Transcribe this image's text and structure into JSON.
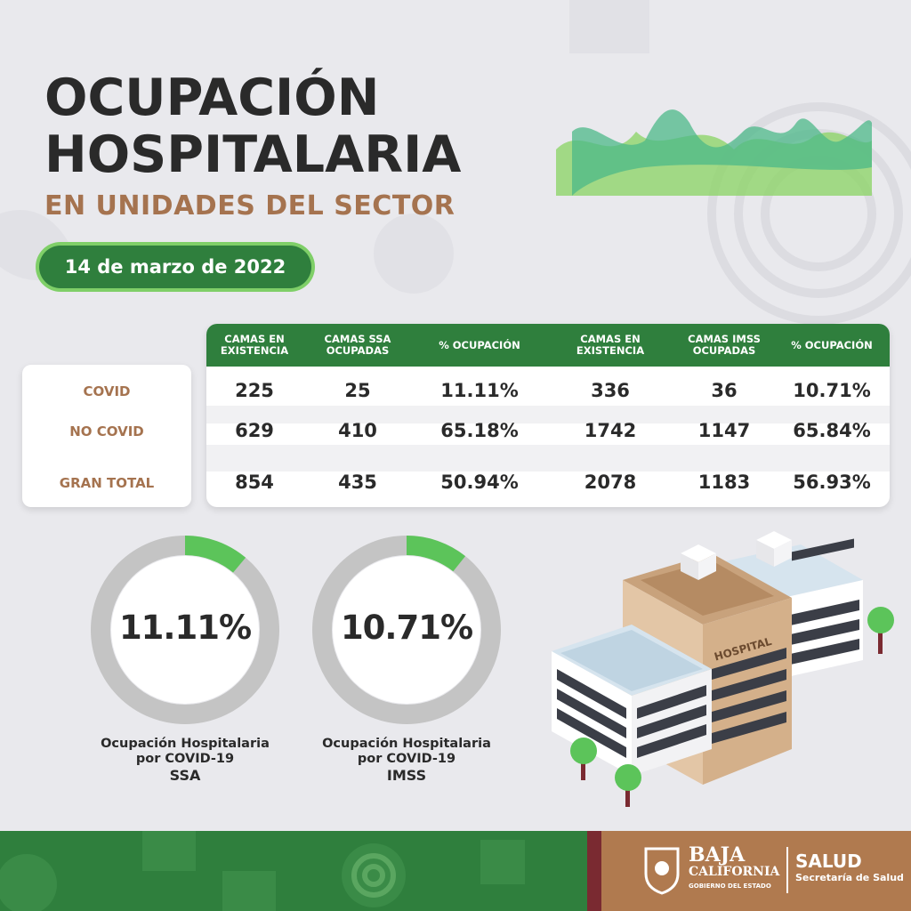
{
  "header": {
    "title_line1": "OCUPACIÓN",
    "title_line2": "HOSPITALARIA",
    "subtitle": "EN UNIDADES DEL SECTOR",
    "date": "14 de marzo de 2022"
  },
  "table": {
    "columns": [
      "CAMAS EN EXISTENCIA",
      "CAMAS SSA OCUPADAS",
      "% OCUPACIÓN",
      "CAMAS EN EXISTENCIA",
      "CAMAS IMSS OCUPADAS",
      "% OCUPACIÓN"
    ],
    "rows": [
      {
        "label": "COVID",
        "values": [
          "225",
          "25",
          "11.11%",
          "336",
          "36",
          "10.71%"
        ]
      },
      {
        "label": "NO COVID",
        "values": [
          "629",
          "410",
          "65.18%",
          "1742",
          "1147",
          "65.84%"
        ]
      },
      {
        "label": "GRAN TOTAL",
        "values": [
          "854",
          "435",
          "50.94%",
          "2078",
          "1183",
          "56.93%"
        ]
      }
    ]
  },
  "donuts": [
    {
      "value": "11.11%",
      "fraction": 0.1111,
      "caption1": "Ocupación Hospitalaria",
      "caption2": "por COVID-19",
      "caption3": "SSA"
    },
    {
      "value": "10.71%",
      "fraction": 0.1071,
      "caption1": "Ocupación Hospitalaria",
      "caption2": "por COVID-19",
      "caption3": "IMSS"
    }
  ],
  "building_sign": "HOSPITAL",
  "footer": {
    "logo_line1": "BAJA",
    "logo_line2": "CALIFORNIA",
    "logo_line3": "GOBIERNO DEL ESTADO",
    "salud": "SALUD",
    "salud_sub": "Secretaría de Salud"
  },
  "colors": {
    "green_dark": "#2f7f3d",
    "green_light": "#5cc45a",
    "brown": "#a5734f",
    "gray_ring": "#c4c4c4"
  }
}
